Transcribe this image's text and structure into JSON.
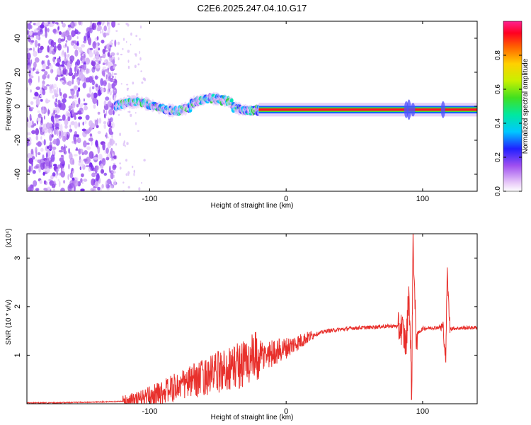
{
  "title": "C2E6.2025.247.04.10.G17",
  "chart_data": [
    {
      "type": "heatmap",
      "name": "spectrogram",
      "xlabel": "Height of straight line (km)",
      "ylabel": "Frequency (Hz)",
      "xlim": [
        -190,
        140
      ],
      "ylim": [
        -50,
        50
      ],
      "xticks": [
        -100,
        0,
        100
      ],
      "yticks": [
        -40,
        -20,
        0,
        20,
        40
      ],
      "colorbar": {
        "label": "Normalized spectral amplitude",
        "range": [
          0,
          1
        ],
        "ticks": [
          0.0,
          0.2,
          0.4,
          0.6,
          0.8
        ],
        "tick_labels": [
          "0.0",
          "0.2",
          "0.4",
          "0.6",
          "0.8"
        ]
      },
      "features": [
        {
          "x_from": -190,
          "x_to": -125,
          "freq_from": -50,
          "freq_to": 50,
          "description": "scattered low-amplitude noise"
        },
        {
          "x_from": -125,
          "x_to": -20,
          "freq_center": 0,
          "description": "broadened, wavy signal band"
        },
        {
          "x_from": -20,
          "x_to": 140,
          "freq_center": -2,
          "description": "narrow high-amplitude carrier"
        }
      ]
    },
    {
      "type": "line",
      "name": "snr",
      "xlabel": "Height of straight line (km)",
      "ylabel": "SNR (10 * v/v)",
      "y_scale_note": "(x10⁴)",
      "xlim": [
        -190,
        140
      ],
      "ylim": [
        0,
        3.5
      ],
      "xticks": [
        -100,
        0,
        100
      ],
      "yticks": [
        1,
        2,
        3
      ],
      "ytick_labels": [
        "1",
        "2",
        "3"
      ],
      "series": [
        {
          "name": "SNR",
          "color": "#e8302c",
          "points": [
            [
              -190,
              0.02
            ],
            [
              -170,
              0.02
            ],
            [
              -150,
              0.03
            ],
            [
              -130,
              0.04
            ],
            [
              -120,
              0.05
            ],
            [
              -110,
              0.08
            ],
            [
              -100,
              0.15
            ],
            [
              -90,
              0.25
            ],
            [
              -80,
              0.35
            ],
            [
              -70,
              0.45
            ],
            [
              -60,
              0.55
            ],
            [
              -50,
              0.65
            ],
            [
              -40,
              0.75
            ],
            [
              -30,
              0.85
            ],
            [
              -20,
              0.95
            ],
            [
              -10,
              1.05
            ],
            [
              0,
              1.15
            ],
            [
              10,
              1.28
            ],
            [
              20,
              1.42
            ],
            [
              30,
              1.5
            ],
            [
              40,
              1.53
            ],
            [
              50,
              1.56
            ],
            [
              60,
              1.57
            ],
            [
              70,
              1.59
            ],
            [
              80,
              1.6
            ],
            [
              85,
              1.55
            ],
            [
              88,
              1.2
            ],
            [
              90,
              2.4
            ],
            [
              92,
              0.15
            ],
            [
              93,
              3.45
            ],
            [
              95,
              1.4
            ],
            [
              100,
              1.55
            ],
            [
              110,
              1.57
            ],
            [
              115,
              1.58
            ],
            [
              117,
              0.9
            ],
            [
              118,
              2.7
            ],
            [
              120,
              1.55
            ],
            [
              130,
              1.56
            ],
            [
              140,
              1.57
            ]
          ]
        }
      ]
    }
  ]
}
